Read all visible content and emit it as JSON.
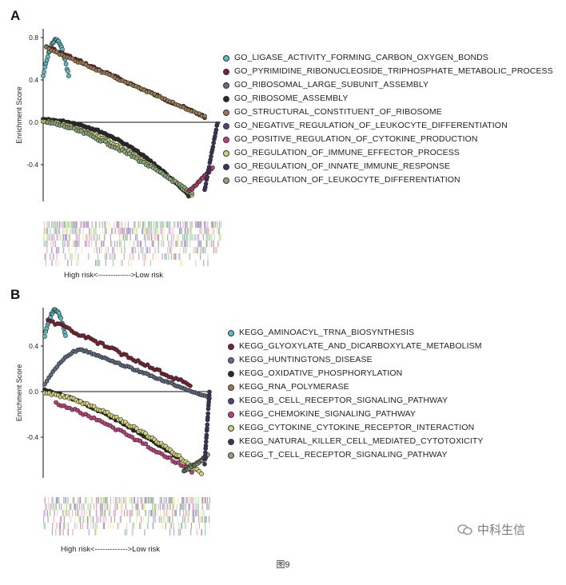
{
  "panel_a": {
    "letter": "A",
    "y_axis_label": "Enrichment Score",
    "y_ticks": [
      "0.8",
      "0.4",
      "0.0",
      "-0.4"
    ],
    "risk_label": "High risk<------------->Low risk",
    "legend": [
      {
        "label": "GO_LIGASE_ACTIVITY_FORMING_CARBON_OXYGEN_BONDS",
        "color": "#5bbcc4"
      },
      {
        "label": "GO_PYRIMIDINE_RIBONUCLEOSIDE_TRIPHOSPHATE_METABOLIC_PROCESS",
        "color": "#7a2234"
      },
      {
        "label": "GO_RIBOSOMAL_LARGE_SUBUNIT_ASSEMBLY",
        "color": "#5f6e86"
      },
      {
        "label": "GO_RIBOSOME_ASSEMBLY",
        "color": "#2a2a2a"
      },
      {
        "label": "GO_STRUCTURAL_CONSTITUENT_OF_RIBOSOME",
        "color": "#9a7b4c"
      },
      {
        "label": "GO_NEGATIVE_REGULATION_OF_LEUKOCYTE_DIFFERENTIATION",
        "color": "#5a3f7a"
      },
      {
        "label": "GO_POSITIVE_REGULATION_OF_CYTOKINE_PRODUCTION",
        "color": "#c0407a"
      },
      {
        "label": "GO_REGULATION_OF_IMMUNE_EFFECTOR_PROCESS",
        "color": "#d6d47a"
      },
      {
        "label": "GO_REGULATION_OF_INNATE_IMMUNE_RESPONSE",
        "color": "#3b3358"
      },
      {
        "label": "GO_REGULATION_OF_LEUKOCYTE_DIFFERENTIATION",
        "color": "#8aa77c"
      }
    ]
  },
  "panel_b": {
    "letter": "B",
    "y_axis_label": "Enrichment Score",
    "y_ticks": [
      "0.4",
      "0.0",
      "-0.4"
    ],
    "risk_label": "High risk<------------->Low risk",
    "legend": [
      {
        "label": "KEGG_AMINOACYL_TRNA_BIOSYNTHESIS",
        "color": "#5bbcc4"
      },
      {
        "label": "KEGG_GLYOXYLATE_AND_DICARBOXYLATE_METABOLISM",
        "color": "#7a2234"
      },
      {
        "label": "KEGG_HUNTINGTONS_DISEASE",
        "color": "#5f6e86"
      },
      {
        "label": "KEGG_OXIDATIVE_PHOSPHORYLATION",
        "color": "#2a2a2a"
      },
      {
        "label": "KEGG_RNA_POLYMERASE",
        "color": "#9a7b4c"
      },
      {
        "label": "KEGG_B_CELL_RECEPTOR_SIGNALING_PATHWAY",
        "color": "#5a3f7a"
      },
      {
        "label": "KEGG_CHEMOKINE_SIGNALING_PATHWAY",
        "color": "#c0407a"
      },
      {
        "label": "KEGG_CYTOKINE_CYTOKINE_RECEPTOR_INTERACTION",
        "color": "#d6d47a"
      },
      {
        "label": "KEGG_NATURAL_KILLER_CELL_MEDIATED_CYTOTOXICITY",
        "color": "#3b3358"
      },
      {
        "label": "KEGG_T_CELL_RECEPTOR_SIGNALING_PATHWAY",
        "color": "#8aa77c"
      }
    ]
  },
  "caption": "图9",
  "watermark": "中科生信"
}
